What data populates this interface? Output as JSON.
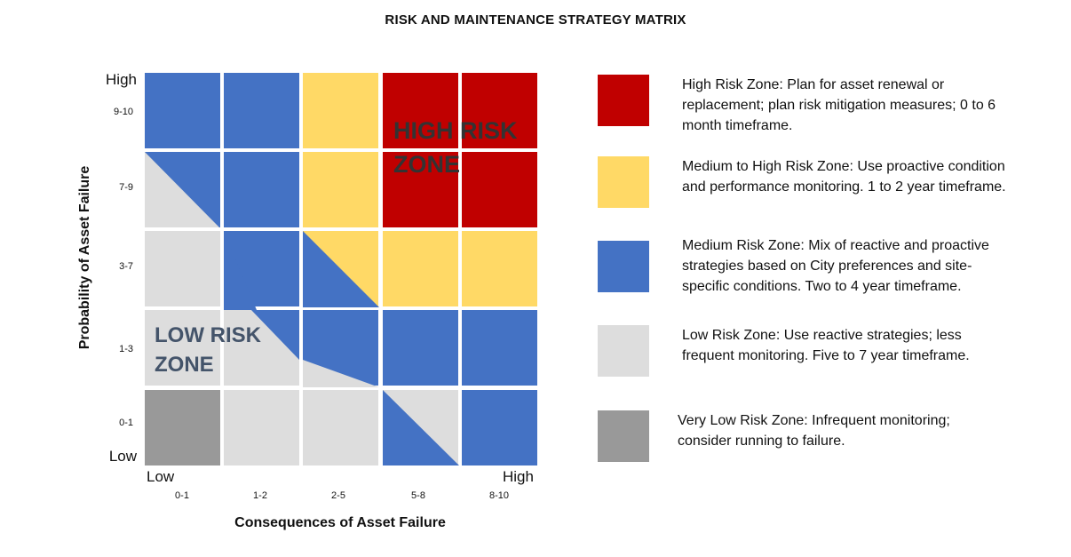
{
  "title": "RISK AND MAINTENANCE STRATEGY MATRIX",
  "colors": {
    "high": "#c00000",
    "medium_high": "#ffd966",
    "medium": "#4472c4",
    "low": "#dddddd",
    "very_low": "#999999"
  },
  "matrix": {
    "y_axis_label": "Probability of Asset Failure",
    "x_axis_label": "Consequences of Asset Failure",
    "y_high_label": "High",
    "y_low_label": "Low",
    "x_low_label": "Low",
    "x_high_label": "High",
    "y_ticks": [
      "9-10",
      "7-9",
      "3-7",
      "1-3",
      "0-1"
    ],
    "x_ticks": [
      "0-1",
      "1-2",
      "2-5",
      "5-8",
      "8-10"
    ],
    "high_zone_line1": "HIGH RISK",
    "high_zone_line2": "ZONE",
    "low_zone_line1": "LOW RISK",
    "low_zone_line2": "ZONE",
    "cells": [
      [
        "medium",
        "medium",
        "medium_high",
        "high",
        "high"
      ],
      [
        "medium",
        "medium",
        "medium_high",
        "high",
        "high"
      ],
      [
        "low",
        "medium",
        "medium_high",
        "medium_high",
        "medium_high"
      ],
      [
        "low",
        "low",
        "medium",
        "medium",
        "medium"
      ],
      [
        "very_low",
        "low",
        "low",
        "low",
        "medium"
      ]
    ]
  },
  "legend": [
    {
      "zone": "high",
      "text": "High Risk Zone: Plan for asset renewal or replacement; plan risk mitigation measures; 0 to 6 month timeframe."
    },
    {
      "zone": "medium_high",
      "text": "Medium to High Risk Zone: Use proactive condition and performance monitoring.  1 to 2 year timeframe."
    },
    {
      "zone": "medium",
      "text": "Medium Risk Zone: Mix of reactive and proactive strategies based on City preferences and site-specific conditions. Two to 4 year timeframe."
    },
    {
      "zone": "low",
      "text": "Low Risk Zone: Use reactive strategies; less frequent monitoring.  Five to 7 year timeframe."
    },
    {
      "zone": "very_low",
      "text": "Very Low Risk Zone: Infrequent monitoring;  consider running to failure."
    }
  ]
}
